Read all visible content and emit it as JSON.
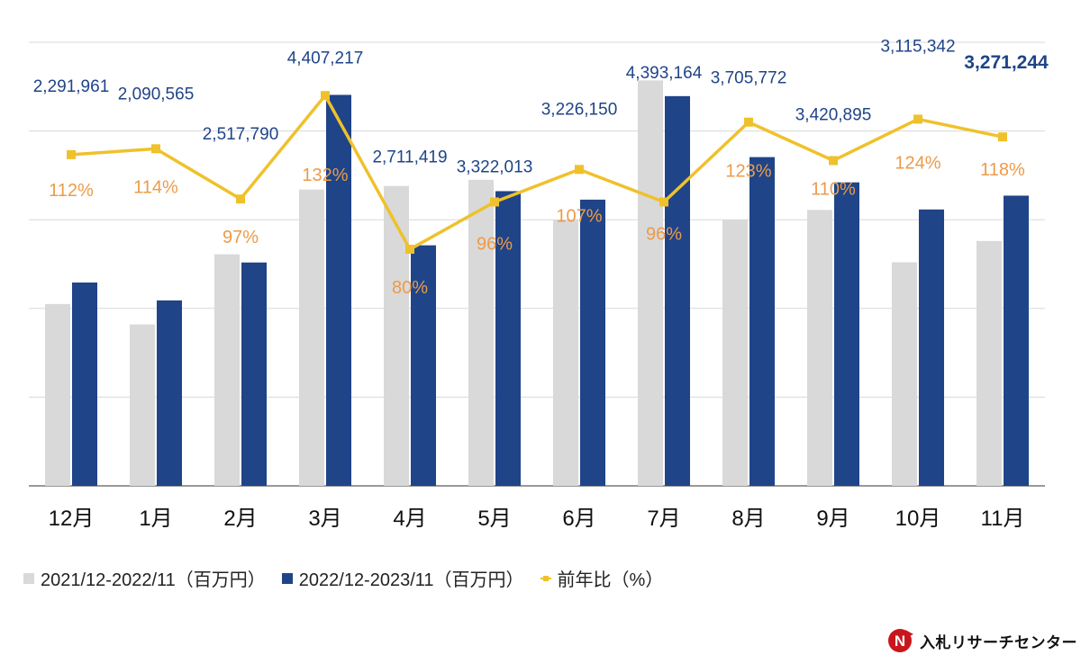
{
  "chart_data": {
    "type": "bar",
    "categories": [
      "12月",
      "1月",
      "2月",
      "3月",
      "4月",
      "5月",
      "6月",
      "7月",
      "8月",
      "9月",
      "10月",
      "11月"
    ],
    "series": [
      {
        "name": "2021/12-2022/11（百万円）",
        "kind": "bar",
        "color": "#d9d9d9",
        "values": [
          2050000,
          1820000,
          2610000,
          3340000,
          3380000,
          3450000,
          3000000,
          4570000,
          3000000,
          3110000,
          2520000,
          2760000
        ]
      },
      {
        "name": "2022/12-2023/11（百万円）",
        "kind": "bar",
        "color": "#1f4488",
        "values": [
          2291961,
          2090565,
          2517790,
          4407217,
          2711419,
          3322013,
          3226150,
          4393164,
          3705772,
          3420895,
          3115342,
          3271244
        ]
      },
      {
        "name": "前年比（%）",
        "kind": "line",
        "color": "#efc12b",
        "values": [
          112,
          114,
          97,
          132,
          80,
          96,
          107,
          96,
          123,
          110,
          124,
          118
        ]
      }
    ],
    "value_labels": [
      "2,291,961",
      "2,090,565",
      "2,517,790",
      "4,407,217",
      "2,711,419",
      "3,322,013",
      "3,226,150",
      "4,393,164",
      "3,705,772",
      "3,420,895",
      "3,115,342",
      "3,271,244"
    ],
    "pct_labels": [
      "112%",
      "114%",
      "97%",
      "132%",
      "80%",
      "96%",
      "107%",
      "96%",
      "123%",
      "110%",
      "124%",
      "118%"
    ],
    "ylim": [
      0,
      5000000
    ],
    "y2lim": [
      0,
      150
    ],
    "grid": true,
    "legend_position": "bottom-left",
    "title": "",
    "xlabel": "",
    "ylabel": ""
  },
  "legend": [
    {
      "label": "2021/12-2022/11（百万円）",
      "color": "#d9d9d9"
    },
    {
      "label": "2022/12-2023/11（百万円）",
      "color": "#1f4488"
    },
    {
      "label": "前年比（%）",
      "color": "#efc12b"
    }
  ],
  "logo": {
    "text": "入札リサーチセンター",
    "mark_icon": "n-arrow-logo-icon"
  }
}
